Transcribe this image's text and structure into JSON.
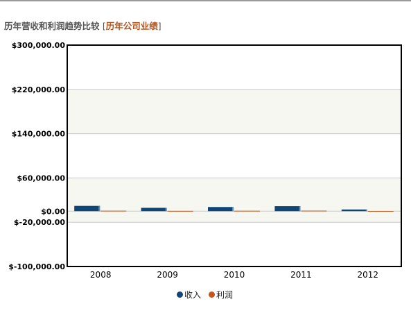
{
  "header": {
    "title": "历年营收和利润趋势比较",
    "link_label": "历年公司业绩",
    "bracket_open": "[",
    "bracket_close": "]"
  },
  "colors": {
    "revenue": "#0f4675",
    "profit": "#c4561b",
    "band": "#f7f7f2",
    "link": "#b3541e"
  },
  "chart_data": {
    "type": "bar",
    "categories": [
      "2008",
      "2009",
      "2010",
      "2011",
      "2012"
    ],
    "series": [
      {
        "name": "收入",
        "values": [
          9500,
          6000,
          7500,
          9000,
          3000
        ]
      },
      {
        "name": "利润",
        "values": [
          800,
          500,
          700,
          900,
          300
        ]
      }
    ],
    "ylim": [
      -100000,
      300000
    ],
    "yticks": [
      300000,
      220000,
      140000,
      60000,
      0,
      -20000,
      -100000
    ],
    "ytick_labels": [
      "$300,000.00",
      "$220,000.00",
      "$140,000.00",
      "$60,000.00",
      "$0.00",
      "$-20,000.00",
      "$-100,000.00"
    ],
    "bands": [
      [
        140000,
        220000
      ],
      [
        -20000,
        60000
      ]
    ],
    "title": "",
    "xlabel": "",
    "ylabel": "",
    "legend": "bottom-center",
    "grid": true
  }
}
